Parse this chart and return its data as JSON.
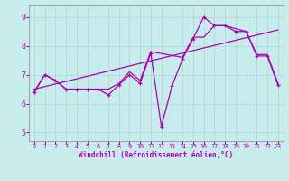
{
  "xlabel": "Windchill (Refroidissement éolien,°C)",
  "bg_color": "#c8ecec",
  "grid_color": "#b0dede",
  "line_color": "#aa00aa",
  "spine_color": "#888888",
  "xlim": [
    -0.5,
    23.5
  ],
  "ylim": [
    4.7,
    9.4
  ],
  "xticks": [
    0,
    1,
    2,
    3,
    4,
    5,
    6,
    7,
    8,
    9,
    10,
    11,
    12,
    13,
    14,
    15,
    16,
    17,
    18,
    19,
    20,
    21,
    22,
    23
  ],
  "yticks": [
    5,
    6,
    7,
    8,
    9
  ],
  "series1_x": [
    0,
    1,
    2,
    3,
    4,
    5,
    6,
    7,
    8,
    9,
    10,
    11,
    12,
    13,
    14,
    15,
    16,
    17,
    18,
    19,
    20,
    21,
    22,
    23
  ],
  "series1_y": [
    6.4,
    7.0,
    6.8,
    6.5,
    6.5,
    6.5,
    6.5,
    6.3,
    6.65,
    7.0,
    6.7,
    7.75,
    5.2,
    6.6,
    7.55,
    8.25,
    9.0,
    8.7,
    8.7,
    8.5,
    8.5,
    7.65,
    7.65,
    6.65
  ],
  "series2_x": [
    0,
    1,
    2,
    3,
    4,
    5,
    6,
    7,
    8,
    9,
    10,
    11,
    14,
    15,
    16,
    17,
    18,
    19,
    20,
    21,
    22,
    23
  ],
  "series2_y": [
    6.4,
    7.0,
    6.8,
    6.5,
    6.5,
    6.5,
    6.5,
    6.5,
    6.7,
    7.1,
    6.8,
    7.8,
    7.6,
    8.3,
    8.3,
    8.7,
    8.7,
    8.6,
    8.5,
    7.7,
    7.7,
    6.7
  ],
  "series3_x": [
    0,
    23
  ],
  "series3_y": [
    6.5,
    8.55
  ],
  "xlabel_fontsize": 5.5,
  "xtick_fontsize": 4.8,
  "ytick_fontsize": 6.0
}
